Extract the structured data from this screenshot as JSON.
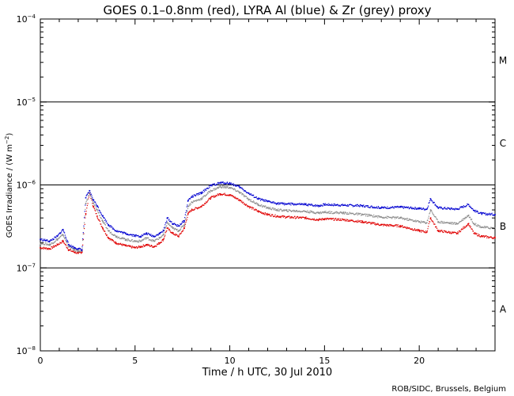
{
  "chart_data": {
    "type": "scatter",
    "title": "GOES 0.1–0.8nm (red), LYRA Al (blue) & Zr (grey) proxy",
    "xlabel": "Time / h UTC, 30 Jul 2010",
    "ylabel_prefix": "GOES Irradiance / (W m",
    "ylabel_exp": "−2",
    "ylabel_suffix": ")",
    "credit": "ROB/SIDC, Brussels, Belgium",
    "xlim": [
      0,
      24
    ],
    "ylim": [
      1e-08,
      0.0001
    ],
    "yscale": "log",
    "x_ticks": [
      {
        "value": 0,
        "label": "0"
      },
      {
        "value": 5,
        "label": "5"
      },
      {
        "value": 10,
        "label": "10"
      },
      {
        "value": 15,
        "label": "15"
      },
      {
        "value": 20,
        "label": "20"
      }
    ],
    "y_ticks": [
      {
        "value": 1e-08,
        "base": "10",
        "exp": "−8"
      },
      {
        "value": 1e-07,
        "base": "10",
        "exp": "−7"
      },
      {
        "value": 1e-06,
        "base": "10",
        "exp": "−6"
      },
      {
        "value": 1e-05,
        "base": "10",
        "exp": "−5"
      },
      {
        "value": 0.0001,
        "base": "10",
        "exp": "−4"
      }
    ],
    "threshold_lines": [
      1e-07,
      1e-06,
      1e-05
    ],
    "flare_classes": [
      {
        "label": "A",
        "value": 3.16e-08
      },
      {
        "label": "B",
        "value": 3.16e-07
      },
      {
        "label": "C",
        "value": 3.16e-06
      },
      {
        "label": "M",
        "value": 3.16e-05
      }
    ],
    "x": [
      0,
      0.5,
      0.9,
      1.2,
      1.5,
      1.8,
      2.0,
      2.2,
      2.4,
      2.6,
      2.8,
      3.0,
      3.3,
      3.6,
      4.0,
      4.5,
      5.0,
      5.3,
      5.6,
      6.0,
      6.3,
      6.5,
      6.7,
      7.0,
      7.3,
      7.6,
      7.8,
      8.0,
      8.5,
      9.0,
      9.5,
      10.0,
      10.5,
      11.0,
      11.5,
      12.0,
      12.5,
      13.0,
      14.0,
      14.7,
      15.0,
      16.0,
      17.0,
      18.0,
      19.0,
      20.0,
      20.4,
      20.6,
      21.0,
      22.0,
      22.6,
      22.9,
      23.3,
      24.0
    ],
    "series": [
      {
        "name": "GOES 0.1–0.8nm",
        "color": "#e00000",
        "values": [
          1.75e-07,
          1.7e-07,
          1.9e-07,
          2.1e-07,
          1.65e-07,
          1.55e-07,
          1.5e-07,
          1.55e-07,
          4.5e-07,
          8e-07,
          5.5e-07,
          4.2e-07,
          3e-07,
          2.3e-07,
          2e-07,
          1.85e-07,
          1.75e-07,
          1.8e-07,
          1.9e-07,
          1.8e-07,
          2e-07,
          2.2e-07,
          3e-07,
          2.6e-07,
          2.4e-07,
          3e-07,
          4.5e-07,
          5e-07,
          5.5e-07,
          7e-07,
          7.8e-07,
          7.6e-07,
          6.6e-07,
          5.5e-07,
          4.8e-07,
          4.4e-07,
          4.2e-07,
          4.1e-07,
          4e-07,
          3.8e-07,
          3.9e-07,
          3.8e-07,
          3.6e-07,
          3.3e-07,
          3.2e-07,
          2.8e-07,
          2.7e-07,
          4e-07,
          2.8e-07,
          2.6e-07,
          3.4e-07,
          2.6e-07,
          2.4e-07,
          2.3e-07
        ]
      },
      {
        "name": "LYRA Zr proxy",
        "color": "#8c8c8c",
        "values": [
          2e-07,
          1.9e-07,
          2.2e-07,
          2.5e-07,
          1.8e-07,
          1.65e-07,
          1.6e-07,
          1.6e-07,
          6e-07,
          8e-07,
          6e-07,
          5e-07,
          3.6e-07,
          2.8e-07,
          2.4e-07,
          2.2e-07,
          2.1e-07,
          2.1e-07,
          2.3e-07,
          2.1e-07,
          2.3e-07,
          2.5e-07,
          3.5e-07,
          3e-07,
          2.8e-07,
          3.3e-07,
          5.5e-07,
          6.2e-07,
          6.8e-07,
          8.5e-07,
          9.5e-07,
          9.3e-07,
          8.2e-07,
          6.7e-07,
          5.8e-07,
          5.3e-07,
          5e-07,
          4.9e-07,
          4.8e-07,
          4.6e-07,
          4.7e-07,
          4.6e-07,
          4.4e-07,
          4.1e-07,
          4e-07,
          3.6e-07,
          3.5e-07,
          5e-07,
          3.6e-07,
          3.4e-07,
          4.3e-07,
          3.4e-07,
          3.1e-07,
          3e-07
        ]
      },
      {
        "name": "LYRA Al proxy",
        "color": "#0000d0",
        "values": [
          2.2e-07,
          2.1e-07,
          2.4e-07,
          2.9e-07,
          1.9e-07,
          1.75e-07,
          1.7e-07,
          1.65e-07,
          7e-07,
          8.5e-07,
          6.6e-07,
          5.6e-07,
          4.2e-07,
          3.3e-07,
          2.8e-07,
          2.6e-07,
          2.45e-07,
          2.4e-07,
          2.6e-07,
          2.4e-07,
          2.6e-07,
          2.8e-07,
          4e-07,
          3.4e-07,
          3.2e-07,
          3.7e-07,
          6.5e-07,
          7.2e-07,
          8e-07,
          9.8e-07,
          1.06e-06,
          1.05e-06,
          9.5e-07,
          7.9e-07,
          6.8e-07,
          6.3e-07,
          6e-07,
          5.9e-07,
          5.8e-07,
          5.6e-07,
          5.8e-07,
          5.7e-07,
          5.6e-07,
          5.3e-07,
          5.4e-07,
          5.2e-07,
          5.1e-07,
          6.8e-07,
          5.3e-07,
          5.1e-07,
          5.8e-07,
          4.9e-07,
          4.5e-07,
          4.4e-07
        ]
      }
    ]
  }
}
